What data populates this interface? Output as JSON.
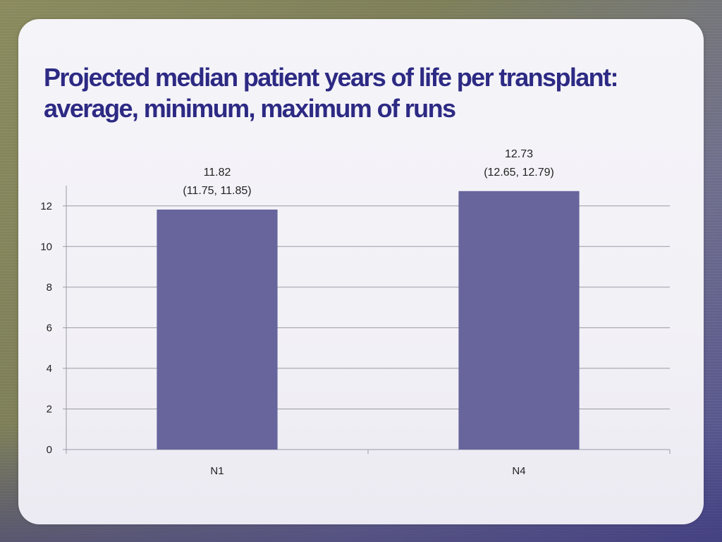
{
  "title_line1": "Projected median patient years of life per transplant:",
  "title_line2": "average, minimum, maximum of runs",
  "chart_data": {
    "type": "bar",
    "categories": [
      "N1",
      "N4"
    ],
    "values": [
      11.82,
      12.73
    ],
    "data_labels": [
      [
        "11.82",
        "(11.75, 11.85)"
      ],
      [
        "12.73",
        "(12.65, 12.79)"
      ]
    ],
    "ylim": [
      0,
      13
    ],
    "yticks": [
      0,
      2,
      4,
      6,
      8,
      10,
      12
    ],
    "grid": true,
    "bar_color": "#67659c"
  }
}
